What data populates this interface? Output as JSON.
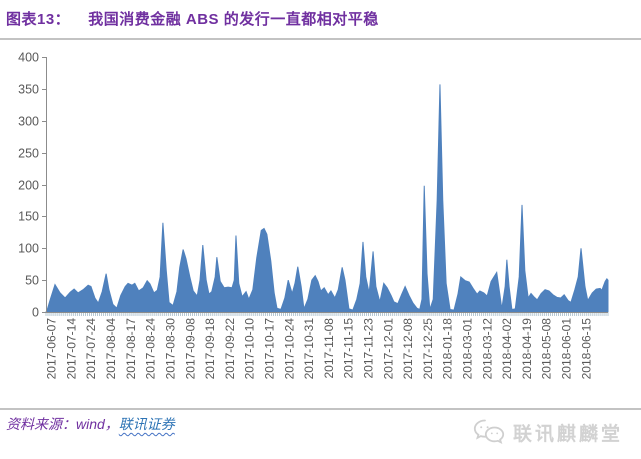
{
  "page": {
    "title_prefix": "图表13：",
    "title_text": "我国消费金融 ABS 的发行一直都相对平稳",
    "source_prefix": "资料来源：wind，",
    "source_link": "联讯证券",
    "watermark": "联讯麒麟堂"
  },
  "colors": {
    "title": "#7030A0",
    "area_fill": "#4F81BD",
    "axis_text": "#595959",
    "axis_line": "#8c8c8c",
    "minor_tick": "#a5bccb",
    "divider": "#c3c3c3",
    "source_text": "#7030A0",
    "source_link": "#2E74B5",
    "watermark": "#d2d2d2"
  },
  "chart_data": {
    "type": "area",
    "title": "我国消费金融 ABS 的发行一直都相对平稳",
    "xlabel": "",
    "ylabel": "",
    "ylim": [
      0,
      400
    ],
    "grid": false,
    "legend": null,
    "y_ticks": [
      0,
      50,
      100,
      150,
      200,
      250,
      300,
      350,
      400
    ],
    "x_tick_labels": [
      "2017-06-07",
      "2017-07-14",
      "2017-07-24",
      "2017-08-04",
      "2017-08-17",
      "2017-08-24",
      "2017-08-30",
      "2017-09-08",
      "2017-09-18",
      "2017-09-22",
      "2017-10-10",
      "2017-10-17",
      "2017-10-24",
      "2017-10-31",
      "2017-11-08",
      "2017-11-15",
      "2017-11-23",
      "2017-12-01",
      "2017-12-08",
      "2017-12-25",
      "2018-01-18",
      "2018-03-01",
      "2018-03-12",
      "2018-04-02",
      "2018-04-19",
      "2018-05-08",
      "2018-06-01",
      "2018-06-15"
    ],
    "x_label_start_pct": 1.0,
    "x_label_step_pct": 3.524,
    "minor_tick_count": 284,
    "values_are_estimates": true,
    "points": [
      [
        0.0,
        0
      ],
      [
        0.2,
        3
      ],
      [
        0.7,
        18
      ],
      [
        1.6,
        43
      ],
      [
        2.5,
        30
      ],
      [
        3.4,
        22
      ],
      [
        4.3,
        31
      ],
      [
        5.0,
        36
      ],
      [
        5.7,
        30
      ],
      [
        6.6,
        35
      ],
      [
        7.5,
        42
      ],
      [
        8.0,
        40
      ],
      [
        8.7,
        22
      ],
      [
        9.3,
        14
      ],
      [
        10.0,
        32
      ],
      [
        10.7,
        60
      ],
      [
        11.2,
        35
      ],
      [
        11.9,
        12
      ],
      [
        12.6,
        6
      ],
      [
        13.3,
        26
      ],
      [
        14.1,
        40
      ],
      [
        14.6,
        45
      ],
      [
        15.3,
        42
      ],
      [
        15.8,
        45
      ],
      [
        16.5,
        33
      ],
      [
        17.3,
        38
      ],
      [
        18.0,
        49
      ],
      [
        18.5,
        44
      ],
      [
        19.2,
        30
      ],
      [
        19.8,
        34
      ],
      [
        20.3,
        55
      ],
      [
        20.8,
        140
      ],
      [
        21.4,
        65
      ],
      [
        21.9,
        15
      ],
      [
        22.6,
        10
      ],
      [
        23.3,
        32
      ],
      [
        23.8,
        70
      ],
      [
        24.4,
        98
      ],
      [
        24.9,
        84
      ],
      [
        25.6,
        55
      ],
      [
        26.2,
        33
      ],
      [
        26.9,
        25
      ],
      [
        27.4,
        50
      ],
      [
        27.9,
        105
      ],
      [
        28.5,
        50
      ],
      [
        29.0,
        28
      ],
      [
        29.5,
        32
      ],
      [
        30.1,
        55
      ],
      [
        30.4,
        86
      ],
      [
        31.0,
        48
      ],
      [
        31.7,
        38
      ],
      [
        32.4,
        39
      ],
      [
        33.1,
        38
      ],
      [
        33.5,
        50
      ],
      [
        33.8,
        120
      ],
      [
        34.3,
        45
      ],
      [
        34.9,
        24
      ],
      [
        35.6,
        32
      ],
      [
        36.1,
        20
      ],
      [
        36.8,
        35
      ],
      [
        37.5,
        85
      ],
      [
        38.3,
        128
      ],
      [
        38.8,
        131
      ],
      [
        39.3,
        122
      ],
      [
        40.0,
        80
      ],
      [
        40.6,
        30
      ],
      [
        41.1,
        6
      ],
      [
        41.8,
        4
      ],
      [
        42.5,
        22
      ],
      [
        43.1,
        50
      ],
      [
        43.8,
        29
      ],
      [
        44.3,
        45
      ],
      [
        44.8,
        71
      ],
      [
        45.4,
        40
      ],
      [
        45.9,
        5
      ],
      [
        46.6,
        20
      ],
      [
        47.3,
        50
      ],
      [
        47.9,
        57
      ],
      [
        48.4,
        48
      ],
      [
        48.9,
        33
      ],
      [
        49.5,
        38
      ],
      [
        50.2,
        27
      ],
      [
        50.7,
        33
      ],
      [
        51.4,
        22
      ],
      [
        52.0,
        35
      ],
      [
        52.7,
        70
      ],
      [
        53.2,
        50
      ],
      [
        53.9,
        5
      ],
      [
        54.6,
        3
      ],
      [
        55.3,
        20
      ],
      [
        55.9,
        45
      ],
      [
        56.4,
        110
      ],
      [
        56.9,
        55
      ],
      [
        57.5,
        30
      ],
      [
        58.2,
        95
      ],
      [
        58.7,
        40
      ],
      [
        59.4,
        16
      ],
      [
        60.1,
        45
      ],
      [
        60.7,
        38
      ],
      [
        61.4,
        26
      ],
      [
        61.9,
        16
      ],
      [
        62.6,
        13
      ],
      [
        63.3,
        28
      ],
      [
        63.9,
        40
      ],
      [
        64.6,
        26
      ],
      [
        65.3,
        14
      ],
      [
        66.0,
        6
      ],
      [
        66.5,
        4
      ],
      [
        66.9,
        20
      ],
      [
        67.3,
        198
      ],
      [
        67.8,
        60
      ],
      [
        68.3,
        4
      ],
      [
        68.9,
        20
      ],
      [
        69.6,
        175
      ],
      [
        70.1,
        357
      ],
      [
        70.6,
        175
      ],
      [
        71.2,
        45
      ],
      [
        71.9,
        4
      ],
      [
        72.6,
        3
      ],
      [
        73.3,
        28
      ],
      [
        73.8,
        55
      ],
      [
        74.6,
        49
      ],
      [
        75.3,
        47
      ],
      [
        76.0,
        37
      ],
      [
        76.7,
        28
      ],
      [
        77.2,
        33
      ],
      [
        77.9,
        30
      ],
      [
        78.5,
        25
      ],
      [
        79.2,
        48
      ],
      [
        79.7,
        55
      ],
      [
        80.2,
        62
      ],
      [
        80.8,
        25
      ],
      [
        81.1,
        5
      ],
      [
        81.7,
        40
      ],
      [
        82.0,
        82
      ],
      [
        82.4,
        40
      ],
      [
        82.9,
        4
      ],
      [
        83.5,
        5
      ],
      [
        84.2,
        55
      ],
      [
        84.7,
        168
      ],
      [
        85.2,
        65
      ],
      [
        85.8,
        22
      ],
      [
        86.3,
        29
      ],
      [
        86.8,
        24
      ],
      [
        87.4,
        19
      ],
      [
        88.1,
        29
      ],
      [
        88.8,
        35
      ],
      [
        89.5,
        33
      ],
      [
        90.2,
        27
      ],
      [
        90.9,
        23
      ],
      [
        91.6,
        22
      ],
      [
        92.2,
        27
      ],
      [
        92.9,
        18
      ],
      [
        93.4,
        15
      ],
      [
        94.1,
        35
      ],
      [
        94.7,
        55
      ],
      [
        95.2,
        100
      ],
      [
        95.9,
        40
      ],
      [
        96.4,
        18
      ],
      [
        97.2,
        30
      ],
      [
        97.9,
        36
      ],
      [
        98.6,
        37
      ],
      [
        98.9,
        34
      ],
      [
        99.5,
        48
      ],
      [
        99.8,
        52
      ],
      [
        100.0,
        50
      ]
    ]
  }
}
